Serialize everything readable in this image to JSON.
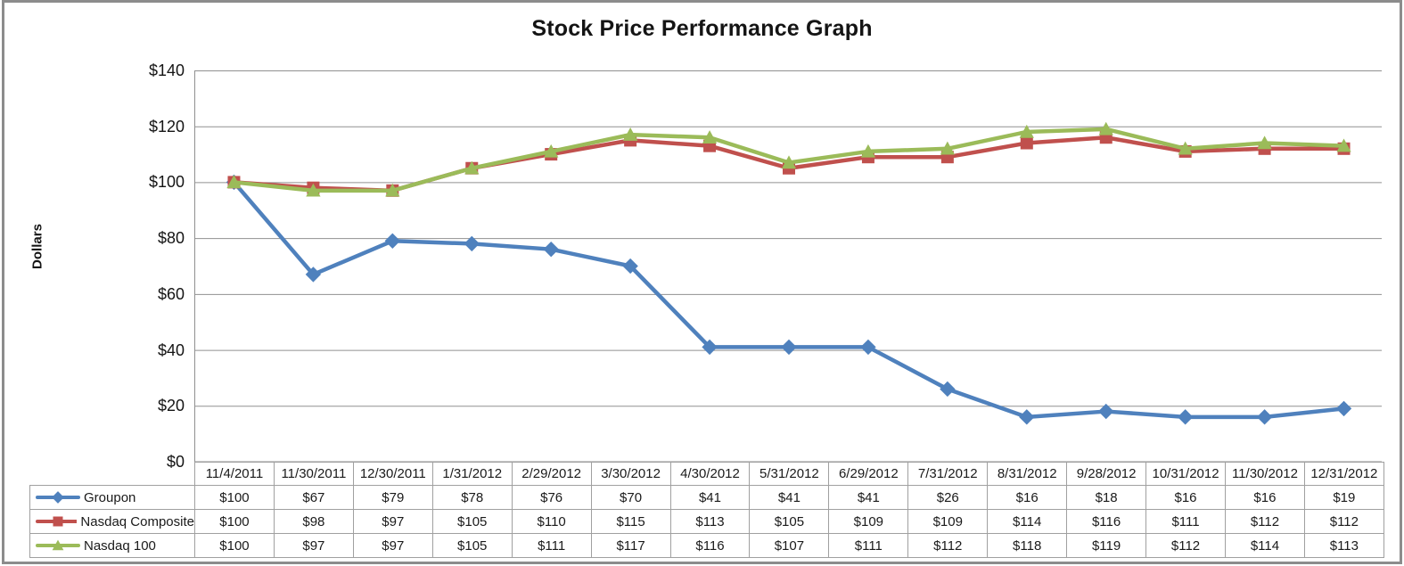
{
  "chart_data": {
    "type": "line",
    "title": "Stock Price Performance Graph",
    "xlabel": "",
    "ylabel": "Dollars",
    "ylim": [
      0,
      140
    ],
    "ytick_step": 20,
    "ytick_labels": [
      "$0",
      "$20",
      "$40",
      "$60",
      "$80",
      "$100",
      "$120",
      "$140"
    ],
    "grid": "horizontal",
    "legend_position": "table-left",
    "value_prefix": "$",
    "categories": [
      "11/4/2011",
      "11/30/2011",
      "12/30/2011",
      "1/31/2012",
      "2/29/2012",
      "3/30/2012",
      "4/30/2012",
      "5/31/2012",
      "6/29/2012",
      "7/31/2012",
      "8/31/2012",
      "9/28/2012",
      "10/31/2012",
      "11/30/2012",
      "12/31/2012"
    ],
    "series": [
      {
        "id": "groupon",
        "name": "Groupon",
        "marker": "diamond",
        "color": "#4f81bd",
        "values": [
          100,
          67,
          79,
          78,
          76,
          70,
          41,
          41,
          41,
          26,
          16,
          18,
          16,
          16,
          19
        ]
      },
      {
        "id": "nasdaq-composite",
        "name": "Nasdaq Composite",
        "marker": "square",
        "color": "#c0504d",
        "values": [
          100,
          98,
          97,
          105,
          110,
          115,
          113,
          105,
          109,
          109,
          114,
          116,
          111,
          112,
          112
        ]
      },
      {
        "id": "nasdaq-100",
        "name": "Nasdaq 100",
        "marker": "triangle",
        "color": "#9bbb59",
        "values": [
          100,
          97,
          97,
          105,
          111,
          117,
          116,
          107,
          111,
          112,
          118,
          119,
          112,
          114,
          113
        ]
      }
    ],
    "colors": {
      "gridline": "#909090",
      "axis": "#909090",
      "table_border": "#a0a0a0",
      "text": "#141414",
      "frame_border": "#8c8c8c"
    }
  }
}
